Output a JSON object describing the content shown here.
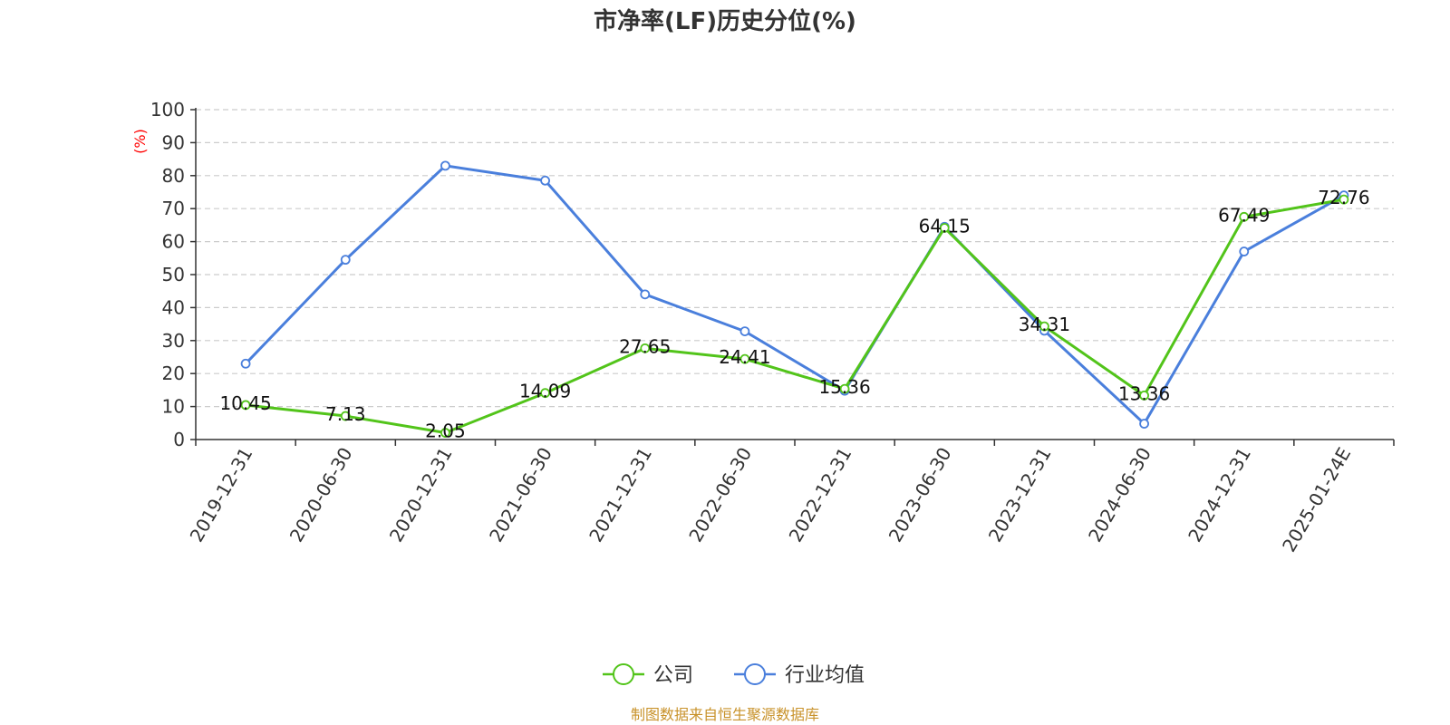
{
  "chart_data": {
    "type": "line",
    "title": "市净率(LF)历史分位(%)",
    "ylabel": "(%)",
    "xlabel": "",
    "ylim": [
      0,
      100
    ],
    "yticks": [
      0,
      10,
      20,
      30,
      40,
      50,
      60,
      70,
      80,
      90,
      100
    ],
    "grid": true,
    "legend_position": "bottom",
    "categories": [
      "2019-12-31",
      "2020-06-30",
      "2020-12-31",
      "2021-06-30",
      "2021-12-31",
      "2022-06-30",
      "2022-12-31",
      "2023-06-30",
      "2023-12-31",
      "2024-06-30",
      "2024-12-31",
      "2025-01-24E"
    ],
    "series": [
      {
        "name": "公司",
        "color": "#52c41a",
        "values": [
          10.45,
          7.13,
          2.05,
          14.09,
          27.65,
          24.41,
          15.36,
          64.15,
          34.31,
          13.36,
          67.49,
          72.76
        ],
        "labels": [
          "10.45",
          "7.13",
          "2.05",
          "14.09",
          "27.65",
          "24.41",
          "15.36",
          "64.15",
          "34.31",
          "13.36",
          "67.49",
          "72.76"
        ]
      },
      {
        "name": "行业均值",
        "color": "#4a7fdc",
        "values": [
          23.0,
          54.5,
          83.0,
          78.5,
          44.0,
          32.8,
          14.8,
          64.5,
          33.0,
          4.8,
          57.0,
          74.0
        ]
      }
    ]
  },
  "footer": {
    "source_text": "制图数据来自恒生聚源数据库"
  }
}
